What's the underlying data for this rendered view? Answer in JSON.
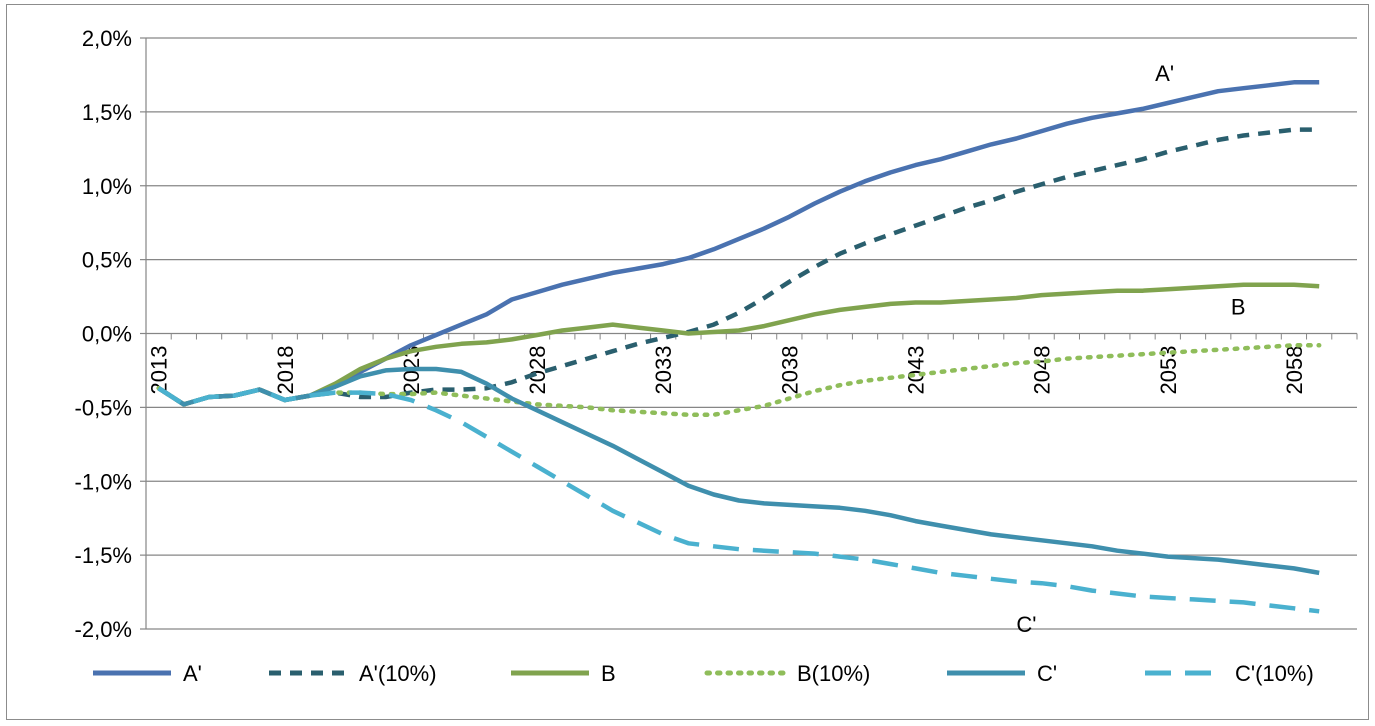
{
  "chart_data": {
    "type": "line",
    "title": "",
    "xlabel": "",
    "ylabel": "",
    "x_start": 2013,
    "x_end": 2060,
    "x_tick_labels": [
      "2013",
      "2018",
      "2023",
      "2028",
      "2033",
      "2038",
      "2043",
      "2048",
      "2053",
      "2058"
    ],
    "y_ticks": [
      2.0,
      1.5,
      1.0,
      0.5,
      0.0,
      -0.5,
      -1.0,
      -1.5,
      -2.0
    ],
    "y_tick_labels": [
      "2,0%",
      "1,5%",
      "1,0%",
      "0,5%",
      "0,0%",
      "-0,5%",
      "-1,0%",
      "-1,5%",
      "-2,0%"
    ],
    "ylim": [
      -2.0,
      2.0
    ],
    "grid": "horizontal",
    "legend_position": "bottom",
    "series": [
      {
        "name": "A'",
        "color": "#4a72b0",
        "style": "solid",
        "values": [
          -0.37,
          -0.48,
          -0.43,
          -0.42,
          -0.38,
          -0.45,
          -0.42,
          -0.35,
          -0.26,
          -0.17,
          -0.08,
          -0.01,
          0.06,
          0.13,
          0.23,
          0.28,
          0.33,
          0.37,
          0.41,
          0.44,
          0.47,
          0.51,
          0.57,
          0.64,
          0.71,
          0.79,
          0.88,
          0.96,
          1.03,
          1.09,
          1.14,
          1.18,
          1.23,
          1.28,
          1.32,
          1.37,
          1.42,
          1.46,
          1.49,
          1.52,
          1.56,
          1.6,
          1.64,
          1.66,
          1.68,
          1.7,
          1.7
        ]
      },
      {
        "name": "A'(10%)",
        "color": "#2a5f6e",
        "style": "dash",
        "values": [
          -0.37,
          -0.48,
          -0.43,
          -0.42,
          -0.38,
          -0.45,
          -0.42,
          -0.4,
          -0.43,
          -0.43,
          -0.4,
          -0.38,
          -0.38,
          -0.37,
          -0.33,
          -0.27,
          -0.22,
          -0.17,
          -0.12,
          -0.07,
          -0.03,
          0.01,
          0.06,
          0.14,
          0.24,
          0.35,
          0.45,
          0.54,
          0.61,
          0.67,
          0.73,
          0.79,
          0.85,
          0.9,
          0.96,
          1.01,
          1.06,
          1.1,
          1.14,
          1.18,
          1.23,
          1.27,
          1.31,
          1.34,
          1.36,
          1.38,
          1.38
        ]
      },
      {
        "name": "B",
        "color": "#80a34e",
        "style": "solid",
        "values": [
          -0.37,
          -0.48,
          -0.43,
          -0.42,
          -0.38,
          -0.45,
          -0.42,
          -0.34,
          -0.24,
          -0.17,
          -0.12,
          -0.09,
          -0.07,
          -0.06,
          -0.04,
          -0.01,
          0.02,
          0.04,
          0.06,
          0.04,
          0.02,
          0.0,
          0.01,
          0.02,
          0.05,
          0.09,
          0.13,
          0.16,
          0.18,
          0.2,
          0.21,
          0.21,
          0.22,
          0.23,
          0.24,
          0.26,
          0.27,
          0.28,
          0.29,
          0.29,
          0.3,
          0.31,
          0.32,
          0.33,
          0.33,
          0.33,
          0.32
        ]
      },
      {
        "name": "B(10%)",
        "color": "#8fbd5a",
        "style": "dot",
        "values": [
          -0.37,
          -0.48,
          -0.43,
          -0.42,
          -0.38,
          -0.45,
          -0.42,
          -0.4,
          -0.4,
          -0.41,
          -0.41,
          -0.4,
          -0.42,
          -0.44,
          -0.46,
          -0.48,
          -0.49,
          -0.5,
          -0.52,
          -0.53,
          -0.54,
          -0.55,
          -0.55,
          -0.52,
          -0.49,
          -0.44,
          -0.39,
          -0.35,
          -0.32,
          -0.3,
          -0.28,
          -0.26,
          -0.24,
          -0.22,
          -0.2,
          -0.19,
          -0.17,
          -0.16,
          -0.15,
          -0.14,
          -0.13,
          -0.12,
          -0.11,
          -0.1,
          -0.09,
          -0.08,
          -0.08
        ]
      },
      {
        "name": "C'",
        "color": "#3f8fad",
        "style": "solid",
        "values": [
          -0.37,
          -0.48,
          -0.43,
          -0.42,
          -0.38,
          -0.45,
          -0.42,
          -0.36,
          -0.29,
          -0.25,
          -0.24,
          -0.24,
          -0.26,
          -0.34,
          -0.44,
          -0.52,
          -0.6,
          -0.68,
          -0.76,
          -0.85,
          -0.94,
          -1.03,
          -1.09,
          -1.13,
          -1.15,
          -1.16,
          -1.17,
          -1.18,
          -1.2,
          -1.23,
          -1.27,
          -1.3,
          -1.33,
          -1.36,
          -1.38,
          -1.4,
          -1.42,
          -1.44,
          -1.47,
          -1.49,
          -1.51,
          -1.52,
          -1.53,
          -1.55,
          -1.57,
          -1.59,
          -1.62
        ]
      },
      {
        "name": "C'(10%)",
        "color": "#4ab1cf",
        "style": "dash-long",
        "values": [
          -0.37,
          -0.48,
          -0.43,
          -0.42,
          -0.38,
          -0.45,
          -0.42,
          -0.4,
          -0.4,
          -0.41,
          -0.45,
          -0.52,
          -0.6,
          -0.7,
          -0.8,
          -0.9,
          -1.0,
          -1.1,
          -1.2,
          -1.28,
          -1.36,
          -1.42,
          -1.44,
          -1.46,
          -1.47,
          -1.48,
          -1.49,
          -1.51,
          -1.53,
          -1.56,
          -1.59,
          -1.62,
          -1.64,
          -1.66,
          -1.68,
          -1.69,
          -1.71,
          -1.74,
          -1.76,
          -1.78,
          -1.79,
          -1.8,
          -1.81,
          -1.82,
          -1.84,
          -1.86,
          -1.88
        ]
      }
    ],
    "annotations": [
      {
        "text": "A'",
        "x": 2052.5,
        "y": 1.71
      },
      {
        "text": "B",
        "x": 2055.5,
        "y": 0.13
      },
      {
        "text": "C'",
        "x": 2047.0,
        "y": -2.02
      }
    ]
  }
}
